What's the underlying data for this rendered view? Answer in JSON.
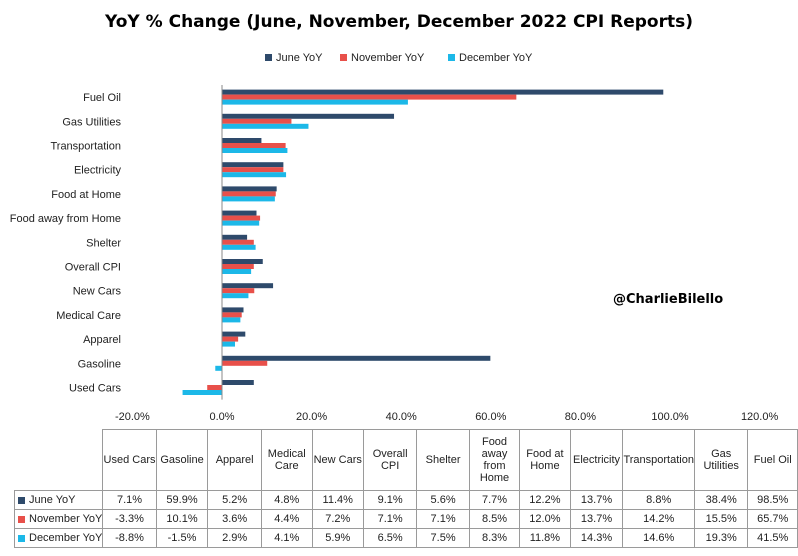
{
  "chart_data": {
    "type": "bar",
    "orientation": "horizontal",
    "title": "YoY % Change (June, November, December 2022 CPI Reports)",
    "categories": [
      "Used Cars",
      "Gasoline",
      "Apparel",
      "Medical Care",
      "New Cars",
      "Overall CPI",
      "Shelter",
      "Food away from Home",
      "Food at Home",
      "Electricity",
      "Transportation",
      "Gas Utilities",
      "Fuel Oil"
    ],
    "table_headers": [
      "Used Cars",
      "Gasoline",
      "Apparel",
      "Medical Care",
      "New Cars",
      "Overall CPI",
      "Shelter",
      "Food away from Home",
      "Food at Home",
      "Electricity",
      "Transportation",
      "Gas Utilities",
      "Fuel Oil"
    ],
    "series": [
      {
        "name": "June YoY",
        "color": "#2e4a6b",
        "values": [
          7.1,
          59.9,
          5.2,
          4.8,
          11.4,
          9.1,
          5.6,
          7.7,
          12.2,
          13.7,
          8.8,
          38.4,
          98.5
        ],
        "labels": [
          "7.1%",
          "59.9%",
          "5.2%",
          "4.8%",
          "11.4%",
          "9.1%",
          "5.6%",
          "7.7%",
          "12.2%",
          "13.7%",
          "8.8%",
          "38.4%",
          "98.5%"
        ]
      },
      {
        "name": "November YoY",
        "color": "#e8504a",
        "values": [
          -3.3,
          10.1,
          3.6,
          4.4,
          7.2,
          7.1,
          7.1,
          8.5,
          12.0,
          13.7,
          14.2,
          15.5,
          65.7
        ],
        "labels": [
          "-3.3%",
          "10.1%",
          "3.6%",
          "4.4%",
          "7.2%",
          "7.1%",
          "7.1%",
          "8.5%",
          "12.0%",
          "13.7%",
          "14.2%",
          "15.5%",
          "65.7%"
        ]
      },
      {
        "name": "December YoY",
        "color": "#1cb8e8",
        "values": [
          -8.8,
          -1.5,
          2.9,
          4.1,
          5.9,
          6.5,
          7.5,
          8.3,
          11.8,
          14.3,
          14.6,
          19.3,
          41.5
        ],
        "labels": [
          "-8.8%",
          "-1.5%",
          "2.9%",
          "4.1%",
          "5.9%",
          "6.5%",
          "7.5%",
          "8.3%",
          "11.8%",
          "14.3%",
          "14.6%",
          "19.3%",
          "41.5%"
        ]
      }
    ],
    "xlim": [
      -20,
      120
    ],
    "xticks": [
      -20,
      0,
      20,
      40,
      60,
      80,
      100,
      120
    ],
    "xtick_labels": [
      "-20.0%",
      "0.0%",
      "20.0%",
      "40.0%",
      "60.0%",
      "80.0%",
      "100.0%",
      "120.0%"
    ],
    "legend_position": "top-center",
    "grid": false,
    "annotation": "@CharlieBilello"
  }
}
